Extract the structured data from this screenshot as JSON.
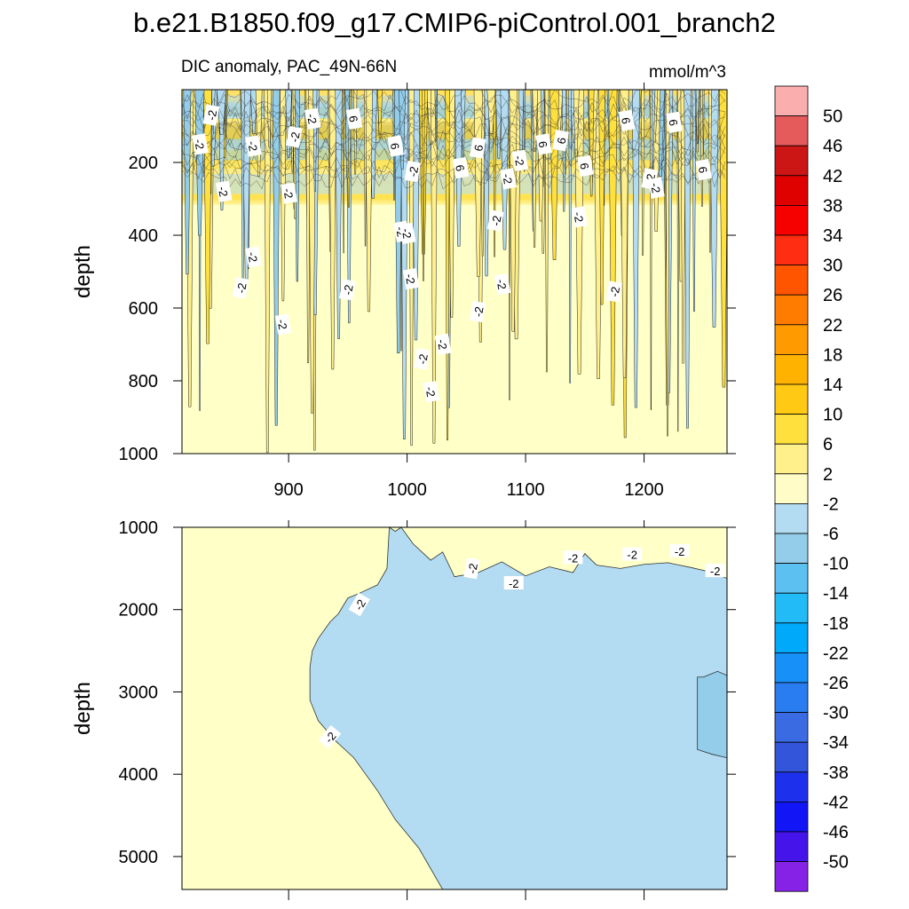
{
  "figure": {
    "title": "b.e21.B1850.f09_g17.CMIP6-piControl.001_branch2",
    "subtitle_left": "DIC anomaly, PAC_49N-66N",
    "subtitle_right": "mmol/m^3"
  },
  "chart_data": [
    {
      "type": "contour",
      "panel": "upper",
      "xlabel": "",
      "ylabel": "depth",
      "xlim": [
        810,
        1270
      ],
      "ylim": [
        1000,
        0
      ],
      "x_ticks": [
        900,
        1000,
        1100,
        1200
      ],
      "x_tick_labels": [
        "900",
        "1000",
        "1100",
        "1200"
      ],
      "y_ticks": [
        200,
        400,
        600,
        800,
        1000
      ],
      "y_tick_labels": [
        "200",
        "400",
        "600",
        "800",
        "1000"
      ],
      "contour_labels": [
        "-2",
        "6"
      ],
      "dominant_fill": "2 to -2 (pale yellow) below 300 m, alternating 2-10 positive and -2 to -6 negative streaks above 300 m"
    },
    {
      "type": "contour",
      "panel": "lower",
      "xlabel": "",
      "ylabel": "depth",
      "xlim": [
        810,
        1270
      ],
      "ylim": [
        5400,
        1000
      ],
      "x_ticks": [
        900,
        1000,
        1100,
        1200
      ],
      "y_ticks": [
        1000,
        2000,
        3000,
        4000,
        5000
      ],
      "y_tick_labels": [
        "1000",
        "2000",
        "3000",
        "4000",
        "5000"
      ],
      "contour_labels": [
        "-2"
      ],
      "dominant_fill": "-2 to -6 (light blue) east of ~940 and below ~1700 m; -6 to -10 patch near x 1245-1270, depth 2800-4000"
    }
  ],
  "colorbar": {
    "levels": [
      "50",
      "46",
      "42",
      "38",
      "34",
      "30",
      "26",
      "22",
      "18",
      "14",
      "10",
      "6",
      "2",
      "-2",
      "-6",
      "-10",
      "-14",
      "-18",
      "-22",
      "-26",
      "-30",
      "-34",
      "-38",
      "-42",
      "-46",
      "-50"
    ],
    "colors": [
      "#fbaeae",
      "#e55a5a",
      "#cc1515",
      "#df0000",
      "#f70000",
      "#ff2d12",
      "#ff5500",
      "#ff7c00",
      "#ff9a00",
      "#ffb300",
      "#ffc914",
      "#ffe03c",
      "#fff08c",
      "#fffcc8",
      "#b3dcf2",
      "#93cdea",
      "#5cc1f1",
      "#22bbf8",
      "#00a9f9",
      "#1791f8",
      "#2a7cf1",
      "#3a6be3",
      "#3255d9",
      "#1d31ec",
      "#1215f6",
      "#4414ea",
      "#8622e6"
    ]
  },
  "colors": {
    "neutral": "#ffffc8",
    "pos_low": "#fff08c",
    "pos_mid": "#ffe03c",
    "pos_high": "#ffc914",
    "neg_low": "#b3dcf2",
    "neg_mid": "#93cdea"
  }
}
